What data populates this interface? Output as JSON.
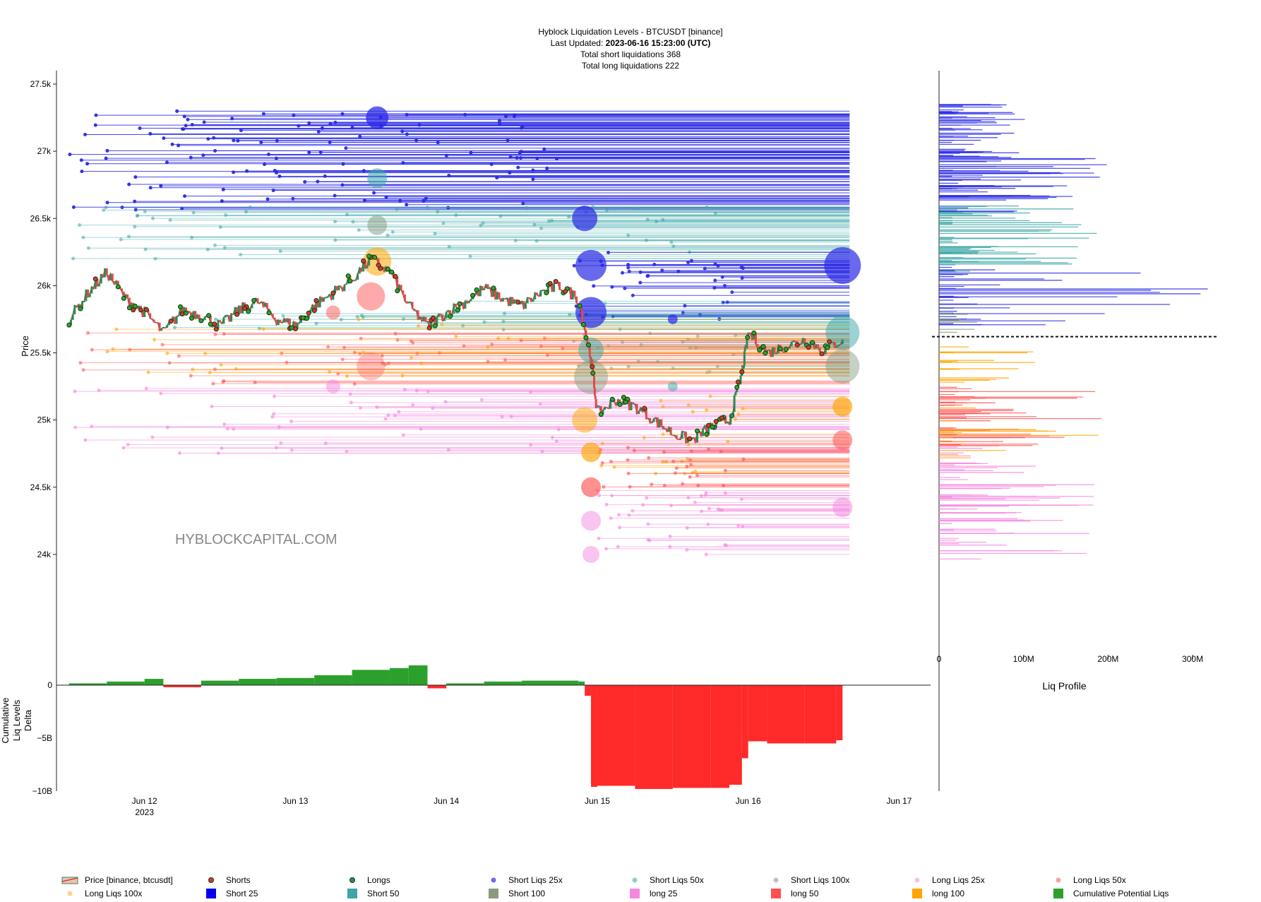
{
  "header": {
    "line1": "Hyblock Liquidation Levels - BTCUSDT [binance]",
    "updated_label": "Last Updated: ",
    "updated_value": "2023-06-16 15:23:00 (UTC)",
    "line3": "Total short liquidations 368",
    "line4": "Total long liquidations 222"
  },
  "watermark": "HYBLOCKCAPITAL.COM",
  "colors": {
    "short25": "#2a2ae6",
    "short50": "#3aa6a6",
    "short100": "#7f9a7f",
    "long25": "#f48ae0",
    "long50": "#ff5555",
    "long100": "#ffa500",
    "price_up": "#2e8b57",
    "price_down": "#e04a4a",
    "cum_pos": "#2ca02c",
    "cum_neg": "#ff2a2a"
  },
  "chart_data": [
    {
      "type": "line",
      "title": "Hyblock Liquidation Levels - BTCUSDT [binance]",
      "ylabel": "Price",
      "ylim": [
        23500,
        27600
      ],
      "yticks": [
        24000,
        24500,
        25000,
        25500,
        26000,
        26500,
        27000,
        27500
      ],
      "ytick_labels": [
        "24k",
        "24.5k",
        "25k",
        "25.5k",
        "26k",
        "26.5k",
        "27k",
        "27.5k"
      ],
      "xlim": [
        "2023-06-11 10:00",
        "2023-06-17 05:00"
      ],
      "xticks": [
        "2023-06-12",
        "2023-06-13",
        "2023-06-14",
        "2023-06-15",
        "2023-06-16",
        "2023-06-17"
      ],
      "xtick_labels": [
        "Jun 12",
        "Jun 13",
        "Jun 14",
        "Jun 15",
        "Jun 16",
        "Jun 17"
      ],
      "xtick_year": "2023",
      "price_series": {
        "name": "Price [binance, btcusdt]",
        "x": [
          "2023-06-11 12:00",
          "2023-06-11 15:00",
          "2023-06-11 18:00",
          "2023-06-11 21:00",
          "2023-06-12 00:00",
          "2023-06-12 03:00",
          "2023-06-12 06:00",
          "2023-06-12 09:00",
          "2023-06-12 12:00",
          "2023-06-12 15:00",
          "2023-06-12 18:00",
          "2023-06-12 21:00",
          "2023-06-13 00:00",
          "2023-06-13 03:00",
          "2023-06-13 06:00",
          "2023-06-13 09:00",
          "2023-06-13 12:00",
          "2023-06-13 15:00",
          "2023-06-13 18:00",
          "2023-06-13 21:00",
          "2023-06-14 00:00",
          "2023-06-14 03:00",
          "2023-06-14 06:00",
          "2023-06-14 09:00",
          "2023-06-14 12:00",
          "2023-06-14 15:00",
          "2023-06-14 18:00",
          "2023-06-14 21:00",
          "2023-06-14 23:00",
          "2023-06-15 00:00",
          "2023-06-15 03:00",
          "2023-06-15 06:00",
          "2023-06-15 09:00",
          "2023-06-15 12:00",
          "2023-06-15 15:00",
          "2023-06-15 18:00",
          "2023-06-15 21:00",
          "2023-06-15 23:00",
          "2023-06-16 00:00",
          "2023-06-16 03:00",
          "2023-06-16 06:00",
          "2023-06-16 09:00",
          "2023-06-16 12:00",
          "2023-06-16 15:00"
        ],
        "y": [
          25750,
          25950,
          26100,
          25900,
          25800,
          25650,
          25820,
          25780,
          25700,
          25820,
          25880,
          25750,
          25700,
          25850,
          25950,
          26050,
          26200,
          26100,
          25850,
          25700,
          25800,
          25880,
          25980,
          25900,
          25850,
          25950,
          26000,
          25900,
          25450,
          25050,
          25150,
          25100,
          25000,
          24900,
          24850,
          24950,
          25000,
          25350,
          25650,
          25500,
          25550,
          25600,
          25520,
          25600
        ]
      },
      "series": [
        {
          "name": "Shorts"
        },
        {
          "name": "Longs"
        },
        {
          "name": "Short Liqs 25x"
        },
        {
          "name": "Short Liqs 50x"
        },
        {
          "name": "Short Liqs 100x"
        },
        {
          "name": "Long Liqs 25x"
        },
        {
          "name": "Long Liqs 50x"
        },
        {
          "name": "Long Liqs 100x"
        },
        {
          "name": "Short 25"
        },
        {
          "name": "Short 50"
        },
        {
          "name": "Short 100"
        },
        {
          "name": "long 25"
        },
        {
          "name": "long 50"
        },
        {
          "name": "long 100"
        }
      ],
      "current_price": 25620
    },
    {
      "type": "area",
      "ylabel": "Cumulative Liq Levels Delta",
      "ylim": [
        -10000000000,
        2000000000
      ],
      "ytick_labels": [
        "0",
        "−5B",
        "−10B"
      ],
      "series": [
        {
          "name": "Cumulative Potential Liqs",
          "x": [
            "2023-06-11 12:00",
            "2023-06-11 18:00",
            "2023-06-12 00:00",
            "2023-06-12 03:00",
            "2023-06-12 09:00",
            "2023-06-12 15:00",
            "2023-06-12 21:00",
            "2023-06-13 03:00",
            "2023-06-13 09:00",
            "2023-06-13 15:00",
            "2023-06-13 18:00",
            "2023-06-13 21:00",
            "2023-06-14 00:00",
            "2023-06-14 06:00",
            "2023-06-14 12:00",
            "2023-06-14 18:00",
            "2023-06-14 21:00",
            "2023-06-14 22:00",
            "2023-06-14 23:00",
            "2023-06-15 00:00",
            "2023-06-15 06:00",
            "2023-06-15 12:00",
            "2023-06-15 18:00",
            "2023-06-15 21:00",
            "2023-06-15 23:00",
            "2023-06-16 00:00",
            "2023-06-16 03:00",
            "2023-06-16 09:00",
            "2023-06-16 14:00",
            "2023-06-16 15:00"
          ],
          "y": [
            200000000,
            400000000,
            700000000,
            -200000000,
            500000000,
            700000000,
            800000000,
            1100000000,
            1700000000,
            1900000000,
            2200000000,
            -300000000,
            200000000,
            400000000,
            500000000,
            500000000,
            400000000,
            -1000000000,
            -9600000000,
            -9500000000,
            -9800000000,
            -9700000000,
            -9700000000,
            -9400000000,
            -6900000000,
            -5300000000,
            -5500000000,
            -5500000000,
            -5200000000,
            -6400000000
          ]
        }
      ]
    },
    {
      "type": "bar",
      "orientation": "horizontal",
      "xlabel": "Liq Profile",
      "xticks": [
        0,
        100000000,
        200000000,
        300000000
      ],
      "xtick_labels": [
        "0",
        "100M",
        "200M",
        "300M"
      ],
      "xlim": [
        0,
        330000000
      ]
    }
  ],
  "legend": [
    {
      "label": "Price [binance, btcusdt]",
      "kind": "price"
    },
    {
      "label": "Shorts",
      "kind": "dot",
      "color": "#e03030"
    },
    {
      "label": "Longs",
      "kind": "dot",
      "color": "#2e8b57"
    },
    {
      "label": "Short Liqs 25x",
      "kind": "dot",
      "color": "#6a6af0"
    },
    {
      "label": "Short Liqs 50x",
      "kind": "dot",
      "color": "#8fd0c0"
    },
    {
      "label": "Short Liqs 100x",
      "kind": "dot",
      "color": "#c0c0c0"
    },
    {
      "label": "Long Liqs 25x",
      "kind": "dot",
      "color": "#f9c0e8"
    },
    {
      "label": "Long Liqs 50x",
      "kind": "dot",
      "color": "#f8a0a0"
    },
    {
      "label": "Long Liqs 100x",
      "kind": "dot",
      "color": "#ffd090"
    },
    {
      "label": "Short 25",
      "kind": "square",
      "color": "#0000ee"
    },
    {
      "label": "Short 50",
      "kind": "square",
      "color": "#3fa3a8"
    },
    {
      "label": "Short 100",
      "kind": "square",
      "color": "#8a9a80"
    },
    {
      "label": "long 25",
      "kind": "square",
      "color": "#f48ae0"
    },
    {
      "label": "long 50",
      "kind": "square",
      "color": "#ff5050"
    },
    {
      "label": "long 100",
      "kind": "square",
      "color": "#ffa500"
    },
    {
      "label": "Cumulative Potential Liqs",
      "kind": "square",
      "color": "#2ca02c"
    }
  ]
}
